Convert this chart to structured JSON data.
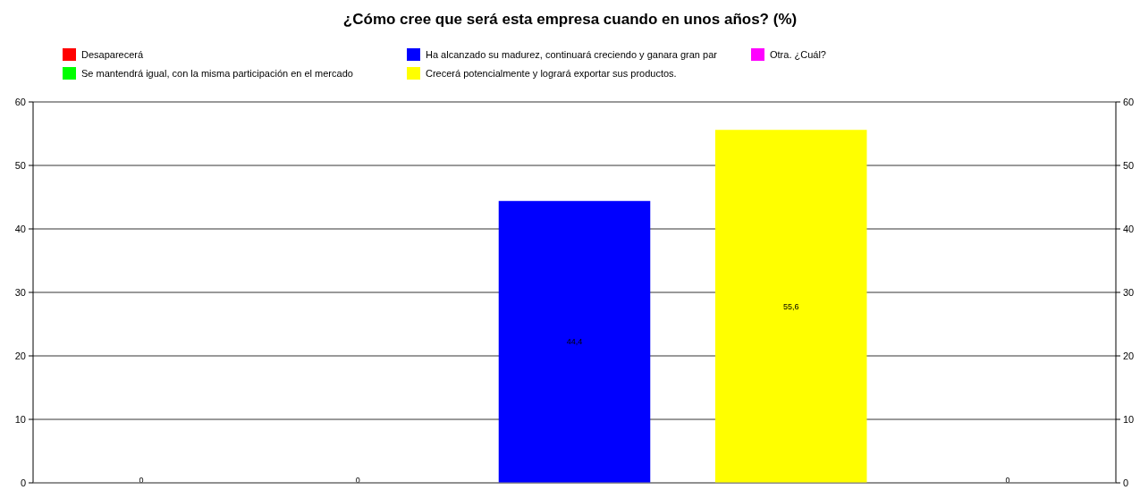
{
  "chart_data": {
    "type": "bar",
    "title": "¿Cómo cree que será esta empresa cuando en unos años? (%)",
    "categories": [
      null,
      null,
      null,
      null,
      null
    ],
    "series": [
      {
        "name": "Desaparecerá",
        "color": "#ff0000",
        "values": [
          0,
          null,
          null,
          null,
          null
        ],
        "value_labels": [
          "0",
          null,
          null,
          null,
          null
        ]
      },
      {
        "name": "Se mantendrá igual, con la misma participación en el mercado",
        "color": "#00ff00",
        "values": [
          null,
          0,
          null,
          null,
          null
        ],
        "value_labels": [
          null,
          "0",
          null,
          null,
          null
        ]
      },
      {
        "name": "Ha alcanzado su madurez, continuará creciendo y ganara gran par",
        "color": "#0000ff",
        "values": [
          null,
          null,
          44.4,
          null,
          null
        ],
        "value_labels": [
          null,
          null,
          "44,4",
          null,
          null
        ]
      },
      {
        "name": "Crecerá potencialmente y logrará exportar sus productos.",
        "color": "#ffff00",
        "values": [
          null,
          null,
          null,
          55.6,
          null
        ],
        "value_labels": [
          null,
          null,
          null,
          "55,6",
          null
        ]
      },
      {
        "name": "Otra. ¿Cuál?",
        "color": "#ff00ff",
        "values": [
          null,
          null,
          null,
          null,
          0
        ],
        "value_labels": [
          null,
          null,
          null,
          null,
          "0"
        ]
      }
    ],
    "ylim": [
      0,
      60
    ],
    "yticks": [
      0,
      10,
      20,
      30,
      40,
      50,
      60
    ],
    "y2lim": [
      0,
      60
    ],
    "y2ticks": [
      0,
      10,
      20,
      30,
      40,
      50,
      60
    ],
    "grid": "y",
    "legend": "top"
  }
}
